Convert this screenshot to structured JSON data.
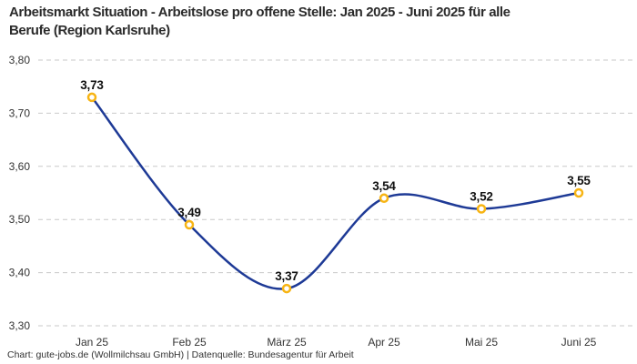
{
  "header": {
    "title_line1": "Arbeitsmarkt Situation - Arbeitslose pro offene Stelle: Jan 2025 - Juni 2025 für alle",
    "title_line2": "Berufe (Region Karlsruhe)"
  },
  "footer": {
    "credit": "Chart: gute-jobs.de (Wollmilchsau GmbH) | Datenquelle: Bundesagentur für Arbeit"
  },
  "chart_data": {
    "type": "line",
    "title": "Arbeitsmarkt Situation - Arbeitslose pro offene Stelle: Jan 2025 - Juni 2025 für alle Berufe (Region Karlsruhe)",
    "xlabel": "",
    "ylabel": "",
    "categories": [
      "Jan 25",
      "Feb 25",
      "März 25",
      "Apr 25",
      "Mai 25",
      "Juni 25"
    ],
    "values": [
      3.73,
      3.49,
      3.37,
      3.54,
      3.52,
      3.55
    ],
    "value_labels": [
      "3,73",
      "3,49",
      "3,37",
      "3,54",
      "3,52",
      "3,55"
    ],
    "y_ticks": [
      3.8,
      3.7,
      3.6,
      3.5,
      3.4,
      3.3
    ],
    "y_tick_labels": [
      "3,80",
      "3,70",
      "3,60",
      "3,50",
      "3,40",
      "3,30"
    ],
    "ylim": [
      3.3,
      3.8
    ],
    "grid": "horizontal-dashed",
    "legend": "none",
    "curve": "smooth-spline",
    "colors": {
      "line": "#1e3a96",
      "marker_ring": "#f7b413",
      "marker_fill": "#ffffff",
      "grid": "#c9c9c9",
      "axis_text": "#333333",
      "value_text": "#111111",
      "title_text": "#2b2b2b",
      "background": "#ffffff"
    }
  }
}
